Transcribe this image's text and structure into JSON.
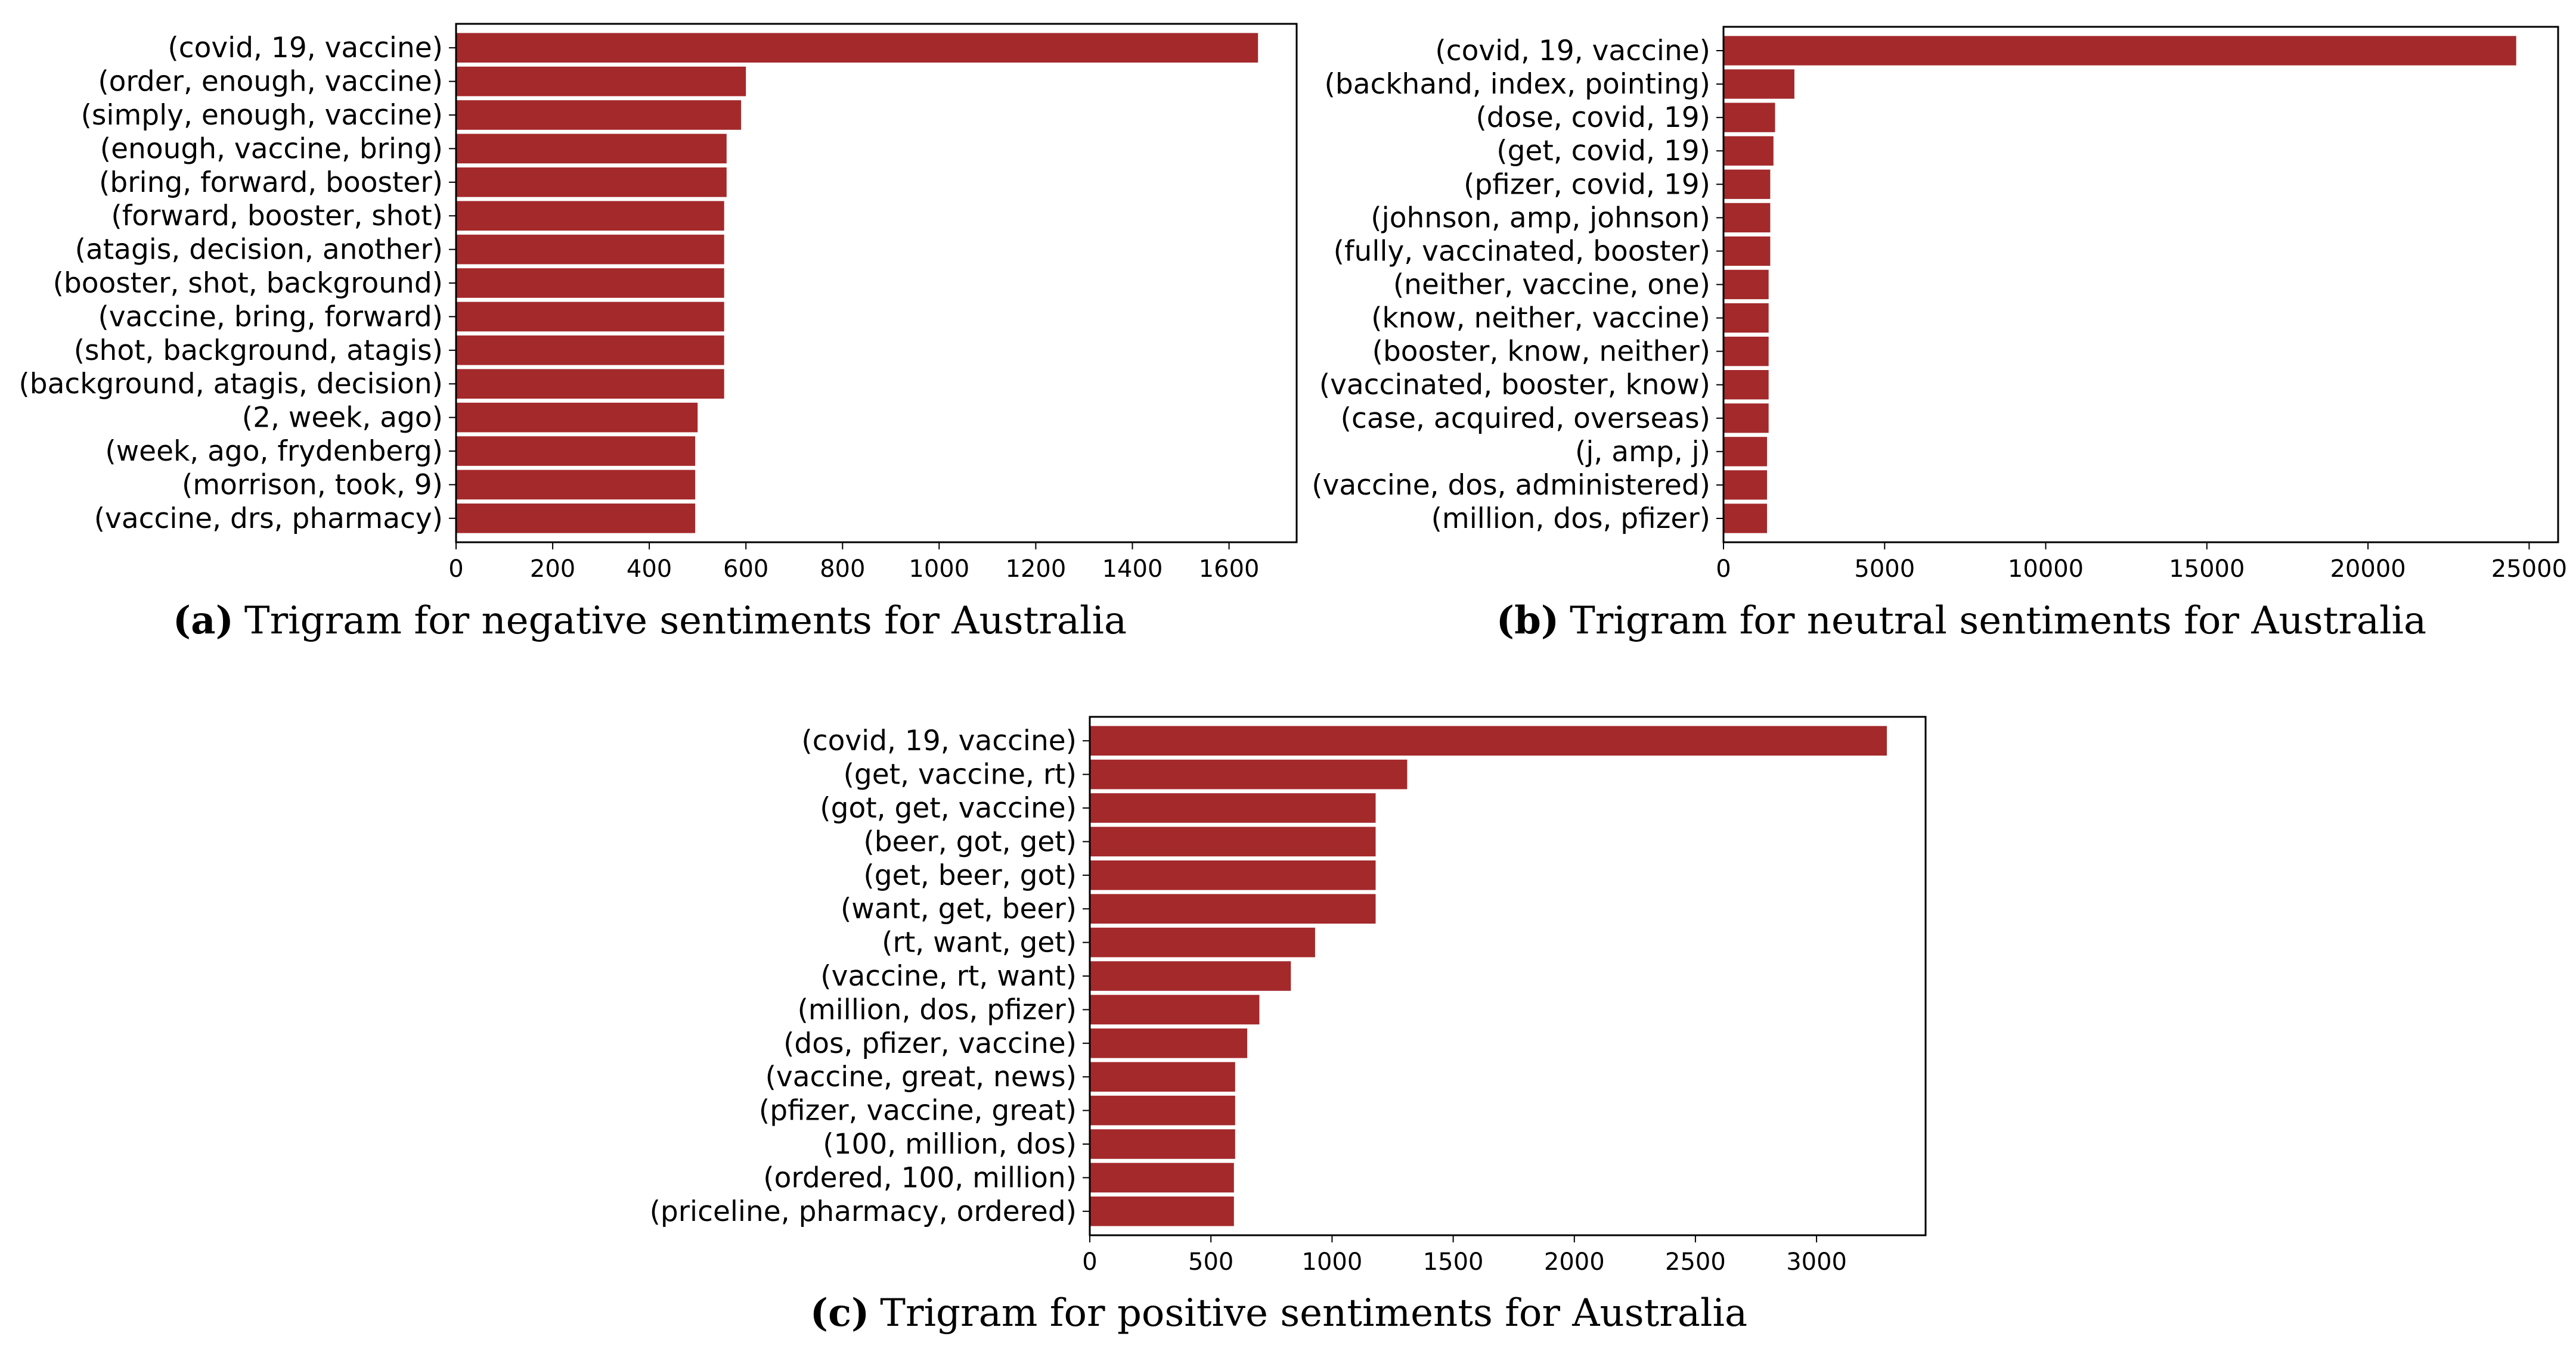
{
  "colors": {
    "bar": "#a4292b",
    "axis": "#000000",
    "background": "#ffffff"
  },
  "chart_data": [
    {
      "id": "a",
      "type": "bar",
      "orientation": "horizontal",
      "caption_letter": "(a)",
      "caption": "Trigram for negative sentiments for Australia",
      "categories": [
        "(covid, 19, vaccine)",
        "(order, enough, vaccine)",
        "(simply, enough, vaccine)",
        "(enough, vaccine, bring)",
        "(bring, forward, booster)",
        "(forward, booster, shot)",
        "(atagis, decision, another)",
        "(booster, shot, background)",
        "(vaccine, bring, forward)",
        "(shot, background, atagis)",
        "(background, atagis, decision)",
        "(2, week, ago)",
        "(week, ago, frydenberg)",
        "(morrison, took, 9)",
        "(vaccine, drs, pharmacy)"
      ],
      "values": [
        1660,
        600,
        590,
        560,
        560,
        555,
        555,
        555,
        555,
        555,
        555,
        500,
        495,
        495,
        495
      ],
      "xlim": [
        0,
        1740
      ],
      "xticks": [
        0,
        200,
        400,
        600,
        800,
        1000,
        1200,
        1400,
        1600
      ],
      "xtick_labels": [
        "0",
        "200",
        "400",
        "600",
        "800",
        "1000",
        "1200",
        "1400",
        "1600"
      ]
    },
    {
      "id": "b",
      "type": "bar",
      "orientation": "horizontal",
      "caption_letter": "(b)",
      "caption": "Trigram for neutral sentiments for Australia",
      "categories": [
        "(covid, 19, vaccine)",
        "(backhand, index, pointing)",
        "(dose, covid, 19)",
        "(get, covid, 19)",
        "(pfizer, covid, 19)",
        "(johnson, amp, johnson)",
        "(fully, vaccinated, booster)",
        "(neither, vaccine, one)",
        "(know, neither, vaccine)",
        "(booster, know, neither)",
        "(vaccinated, booster, know)",
        "(case, acquired, overseas)",
        "(j, amp, j)",
        "(vaccine, dos, administered)",
        "(million, dos, pfizer)"
      ],
      "values": [
        24600,
        2200,
        1600,
        1550,
        1450,
        1450,
        1450,
        1400,
        1400,
        1400,
        1400,
        1400,
        1350,
        1350,
        1350
      ],
      "xlim": [
        0,
        25900
      ],
      "xticks": [
        0,
        5000,
        10000,
        15000,
        20000,
        25000
      ],
      "xtick_labels": [
        "0",
        "5000",
        "10000",
        "15000",
        "20000",
        "25000"
      ]
    },
    {
      "id": "c",
      "type": "bar",
      "orientation": "horizontal",
      "caption_letter": "(c)",
      "caption": "Trigram for positive sentiments for Australia",
      "categories": [
        "(covid, 19, vaccine)",
        "(get, vaccine, rt)",
        "(got, get, vaccine)",
        "(beer, got, get)",
        "(get, beer, got)",
        "(want, get, beer)",
        "(rt, want, get)",
        "(vaccine, rt, want)",
        "(million, dos, pfizer)",
        "(dos, pfizer, vaccine)",
        "(vaccine, great, news)",
        "(pfizer, vaccine, great)",
        "(100, million, dos)",
        "(ordered, 100, million)",
        "(priceline, pharmacy, ordered)"
      ],
      "values": [
        3290,
        1310,
        1180,
        1180,
        1180,
        1180,
        930,
        830,
        700,
        650,
        600,
        600,
        600,
        595,
        595
      ],
      "xlim": [
        0,
        3450
      ],
      "xticks": [
        0,
        500,
        1000,
        1500,
        2000,
        2500,
        3000
      ],
      "xtick_labels": [
        "0",
        "500",
        "1000",
        "1500",
        "2000",
        "2500",
        "3000"
      ]
    }
  ]
}
